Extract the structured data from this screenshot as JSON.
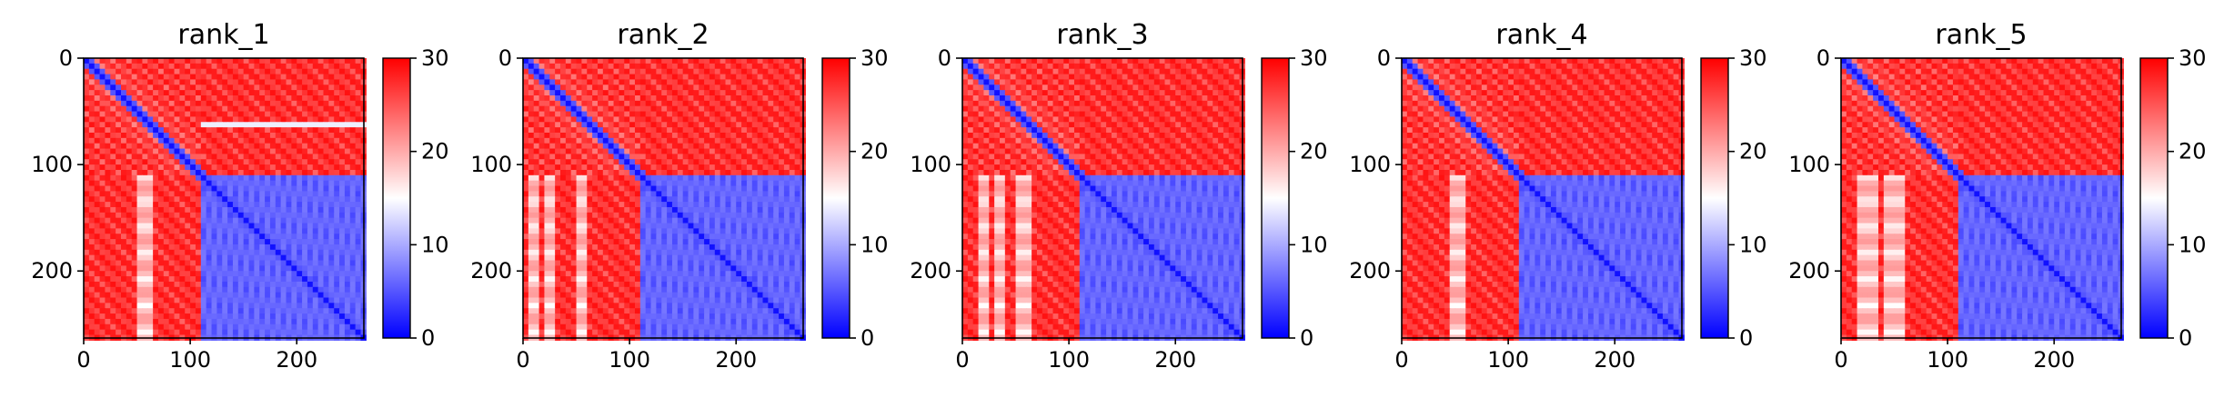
{
  "chart_data": [
    {
      "type": "heatmap",
      "title": "rank_1",
      "xlim": [
        0,
        263
      ],
      "ylim": [
        263,
        0
      ],
      "xticks": [
        0,
        100,
        200
      ],
      "yticks": [
        0,
        100,
        200
      ],
      "colorbar": {
        "range": [
          0,
          30
        ],
        "ticks": [
          0,
          10,
          20,
          30
        ],
        "colormap": "bwr"
      },
      "matrix_size": 263,
      "diagonal_low_error": true,
      "domain_boundary": 110,
      "high_error_rows": [
        62
      ],
      "high_error_cols": [
        55,
        62
      ]
    },
    {
      "type": "heatmap",
      "title": "rank_2",
      "xlim": [
        0,
        263
      ],
      "ylim": [
        263,
        0
      ],
      "xticks": [
        0,
        100,
        200
      ],
      "yticks": [
        0,
        100,
        200
      ],
      "colorbar": {
        "range": [
          0,
          30
        ],
        "ticks": [
          0,
          10,
          20,
          30
        ],
        "colormap": "bwr"
      },
      "matrix_size": 263,
      "diagonal_low_error": true,
      "domain_boundary": 110,
      "high_error_rows": [],
      "high_error_cols": [
        10,
        25,
        55
      ]
    },
    {
      "type": "heatmap",
      "title": "rank_3",
      "xlim": [
        0,
        263
      ],
      "ylim": [
        263,
        0
      ],
      "xticks": [
        0,
        100,
        200
      ],
      "yticks": [
        0,
        100,
        200
      ],
      "colorbar": {
        "range": [
          0,
          30
        ],
        "ticks": [
          0,
          10,
          20,
          30
        ],
        "colormap": "bwr"
      },
      "matrix_size": 263,
      "diagonal_low_error": true,
      "domain_boundary": 110,
      "high_error_rows": [],
      "high_error_cols": [
        20,
        35,
        55,
        60
      ]
    },
    {
      "type": "heatmap",
      "title": "rank_4",
      "xlim": [
        0,
        263
      ],
      "ylim": [
        263,
        0
      ],
      "xticks": [
        0,
        100,
        200
      ],
      "yticks": [
        0,
        100,
        200
      ],
      "colorbar": {
        "range": [
          0,
          30
        ],
        "ticks": [
          0,
          10,
          20,
          30
        ],
        "colormap": "bwr"
      },
      "matrix_size": 263,
      "diagonal_low_error": true,
      "domain_boundary": 110,
      "high_error_rows": [],
      "high_error_cols": [
        50,
        58
      ]
    },
    {
      "type": "heatmap",
      "title": "rank_5",
      "xlim": [
        0,
        263
      ],
      "ylim": [
        263,
        0
      ],
      "xticks": [
        0,
        100,
        200
      ],
      "yticks": [
        0,
        100,
        200
      ],
      "colorbar": {
        "range": [
          0,
          30
        ],
        "ticks": [
          0,
          10,
          20,
          30
        ],
        "colormap": "bwr"
      },
      "matrix_size": 263,
      "diagonal_low_error": true,
      "domain_boundary": 110,
      "high_error_rows": [],
      "high_error_cols": [
        20,
        30,
        45,
        55
      ]
    }
  ]
}
